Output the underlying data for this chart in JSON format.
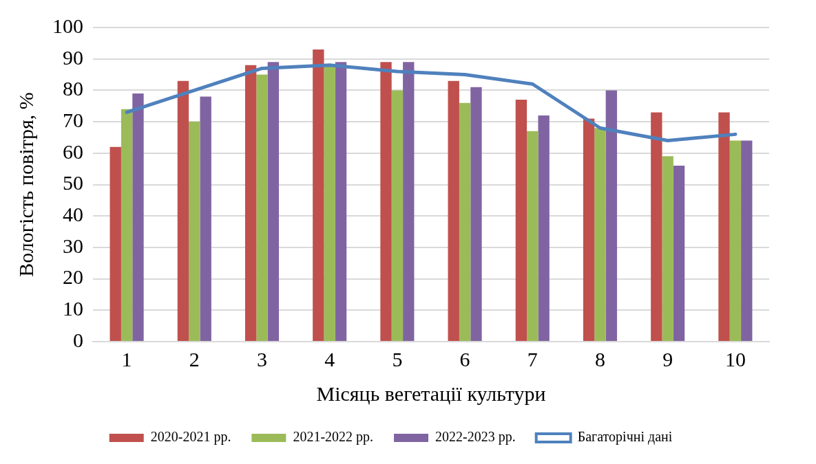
{
  "chart_data": {
    "type": "bar",
    "xlabel": "Місяць вегетації культури",
    "ylabel": "Вологість повітря, %",
    "categories": [
      "1",
      "2",
      "3",
      "4",
      "5",
      "6",
      "7",
      "8",
      "9",
      "10"
    ],
    "series": [
      {
        "name": "2020-2021 рр.",
        "color": "#c0504d",
        "values": [
          62,
          83,
          88,
          93,
          89,
          83,
          77,
          71,
          73,
          73
        ]
      },
      {
        "name": "2021-2022 рр.",
        "color": "#9bbb59",
        "values": [
          74,
          70,
          85,
          88,
          80,
          76,
          67,
          68,
          59,
          64
        ]
      },
      {
        "name": "2022-2023 рр.",
        "color": "#8064a2",
        "values": [
          79,
          78,
          89,
          89,
          89,
          81,
          72,
          80,
          56,
          64
        ]
      },
      {
        "name": "Багаторічні дані",
        "type": "line",
        "color": "#4f81bd",
        "values": [
          73,
          80,
          87,
          88,
          86,
          85,
          82,
          68,
          64,
          66
        ]
      }
    ],
    "ylim": [
      0,
      100
    ],
    "yticks": [
      0,
      10,
      20,
      30,
      40,
      50,
      60,
      70,
      80,
      90,
      100
    ],
    "grid": "y",
    "legend": "bottom",
    "marker": "none"
  }
}
